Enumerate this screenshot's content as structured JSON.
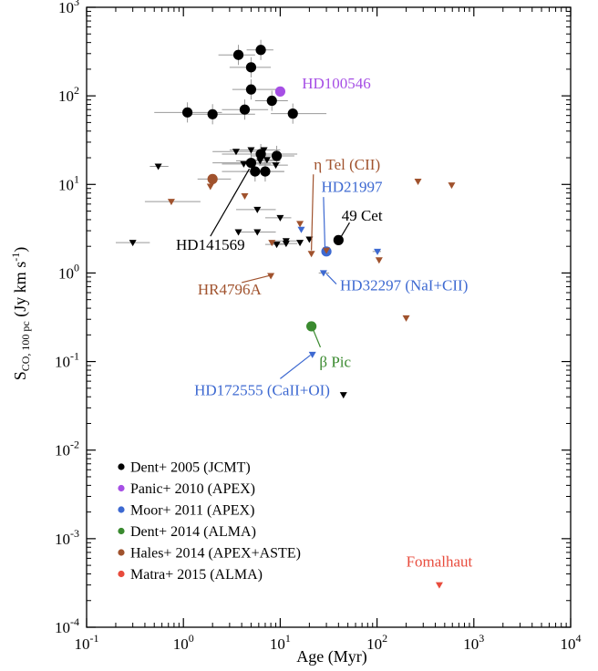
{
  "colors": {
    "dent2005": "#000000",
    "panic2010": "#a64fe5",
    "moor2011": "#3d69d1",
    "dent2014": "#3a8a2f",
    "hales2014": "#a0522d",
    "matra2015": "#e84b3c",
    "errorbar": "#999999"
  },
  "chart_data": {
    "type": "scatter",
    "xscale": "log",
    "yscale": "log",
    "xlim": [
      0.1,
      10000
    ],
    "ylim": [
      0.0001,
      1000
    ],
    "xlabel": "Age (Myr)",
    "ylabel": "S_CO,100 pc (Jy km s^-1)",
    "ylabel_parts": {
      "main": "S",
      "sub": "CO, 100 pc",
      "unit": " (Jy km s",
      "sup": "-1",
      "close": ")"
    },
    "xticks": [
      {
        "base": "10",
        "exp": "-1",
        "value": 0.1
      },
      {
        "base": "10",
        "exp": "0",
        "value": 1
      },
      {
        "base": "10",
        "exp": "1",
        "value": 10
      },
      {
        "base": "10",
        "exp": "2",
        "value": 100
      },
      {
        "base": "10",
        "exp": "3",
        "value": 1000
      },
      {
        "base": "10",
        "exp": "4",
        "value": 10000
      }
    ],
    "yticks": [
      {
        "base": "10",
        "exp": "-4",
        "value": 0.0001
      },
      {
        "base": "10",
        "exp": "-3",
        "value": 0.001
      },
      {
        "base": "10",
        "exp": "-2",
        "value": 0.01
      },
      {
        "base": "10",
        "exp": "-1",
        "value": 0.1
      },
      {
        "base": "10",
        "exp": "0",
        "value": 1
      },
      {
        "base": "10",
        "exp": "1",
        "value": 10
      },
      {
        "base": "10",
        "exp": "2",
        "value": 100
      },
      {
        "base": "10",
        "exp": "3",
        "value": 1000
      }
    ],
    "legend_position": "bottom-left",
    "series": [
      {
        "name": "Dent+ 2005 (JCMT)",
        "color_key": "dent2005",
        "detections": [
          {
            "x": 6.3,
            "y": 330,
            "xerr": [
              4.5,
              8.5
            ]
          },
          {
            "x": 3.7,
            "y": 290,
            "xerr": [
              2.3,
              5.5
            ]
          },
          {
            "x": 5.0,
            "y": 210,
            "xerr": [
              3.0,
              8.0
            ]
          },
          {
            "x": 5.0,
            "y": 118,
            "xerr": [
              3.2,
              9.0
            ]
          },
          {
            "x": 8.2,
            "y": 88,
            "xerr": [
              5.5,
              12.0
            ]
          },
          {
            "x": 4.3,
            "y": 70,
            "xerr": [
              2.5,
              7.5
            ]
          },
          {
            "x": 1.1,
            "y": 65,
            "xerr": [
              0.5,
              2.5
            ]
          },
          {
            "x": 2.0,
            "y": 62,
            "xerr": [
              1.0,
              5.5
            ]
          },
          {
            "x": 13.5,
            "y": 63,
            "xerr": [
              8.0,
              30.0
            ]
          },
          {
            "x": 6.3,
            "y": 22,
            "xerr": [
              2.5,
              15.0
            ]
          },
          {
            "x": 9.2,
            "y": 21,
            "xerr": [
              5.0,
              14.0
            ]
          },
          {
            "x": 5.0,
            "y": 17.5,
            "xerr": [
              2.0,
              10.0
            ]
          },
          {
            "x": 5.5,
            "y": 14,
            "xerr": [
              2.5,
              11.0
            ]
          },
          {
            "x": 7.0,
            "y": 14,
            "xerr": [
              4.0,
              11.0
            ]
          },
          {
            "x": 40,
            "y": 2.35,
            "xerr": null
          }
        ],
        "upper_limits": [
          {
            "x": 0.3,
            "y": 2.2,
            "xerr": [
              0.2,
              0.45
            ]
          },
          {
            "x": 0.55,
            "y": 16,
            "xerr": [
              0.45,
              0.7
            ]
          },
          {
            "x": 3.5,
            "y": 23.5,
            "xerr": [
              2.0,
              6.0
            ]
          },
          {
            "x": 5.0,
            "y": 24.5,
            "xerr": [
              3.0,
              9.0
            ]
          },
          {
            "x": 6.8,
            "y": 24.5,
            "xerr": [
              4.0,
              10.0
            ]
          },
          {
            "x": 4.2,
            "y": 17,
            "xerr": [
              2.5,
              8.0
            ]
          },
          {
            "x": 6.2,
            "y": 18.5,
            "xerr": [
              3.5,
              10.0
            ]
          },
          {
            "x": 7.3,
            "y": 19,
            "xerr": [
              4.5,
              10.0
            ]
          },
          {
            "x": 9.0,
            "y": 16.5,
            "xerr": [
              6.0,
              12.0
            ]
          },
          {
            "x": 5.8,
            "y": 5.2,
            "xerr": [
              3.5,
              9.0
            ]
          },
          {
            "x": 5.8,
            "y": 2.9,
            "xerr": [
              3.5,
              9.0
            ]
          },
          {
            "x": 10.0,
            "y": 4.2,
            "xerr": [
              7.0,
              13.0
            ]
          },
          {
            "x": 9.2,
            "y": 2.1,
            "xerr": [
              7.0,
              12.0
            ]
          },
          {
            "x": 11.5,
            "y": 2.15,
            "xerr": [
              8.0,
              15.0
            ]
          },
          {
            "x": 11.5,
            "y": 2.3,
            "xerr": [
              8.0,
              15.0
            ]
          },
          {
            "x": 16.0,
            "y": 2.2,
            "xerr": null
          },
          {
            "x": 20.0,
            "y": 2.4,
            "xerr": null
          },
          {
            "x": 3.7,
            "y": 2.9,
            "xerr": null
          },
          {
            "x": 45,
            "y": 0.042,
            "xerr": null
          }
        ]
      },
      {
        "name": "Panic+ 2010 (APEX)",
        "color_key": "panic2010",
        "detections": [
          {
            "x": 10.0,
            "y": 112,
            "xerr": null
          }
        ],
        "upper_limits": []
      },
      {
        "name": "Moor+ 2011 (APEX)",
        "color_key": "moor2011",
        "detections": [
          {
            "x": 30,
            "y": 1.75,
            "xerr": null
          }
        ],
        "upper_limits": [
          {
            "x": 16.5,
            "y": 3.1,
            "xerr": null
          },
          {
            "x": 21.5,
            "y": 0.12,
            "xerr": null
          },
          {
            "x": 28.0,
            "y": 1.0,
            "xerr": [
              25.0,
              32.0
            ]
          },
          {
            "x": 101,
            "y": 1.75,
            "xerr": [
              90.0,
              110.0
            ]
          }
        ]
      },
      {
        "name": "Dent+ 2014 (ALMA)",
        "color_key": "dent2014",
        "detections": [
          {
            "x": 21,
            "y": 0.25,
            "xerr": null
          }
        ],
        "upper_limits": []
      },
      {
        "name": "Hales+ 2014 (APEX+ASTE)",
        "color_key": "hales2014",
        "detections": [
          {
            "x": 2.0,
            "y": 11.5,
            "xerr": [
              1.4,
              3.1
            ]
          }
        ],
        "upper_limits": [
          {
            "x": 0.75,
            "y": 6.4,
            "xerr": [
              0.4,
              1.5
            ]
          },
          {
            "x": 1.9,
            "y": 9.5,
            "xerr": null
          },
          {
            "x": 4.3,
            "y": 7.4,
            "xerr": null
          },
          {
            "x": 8.0,
            "y": 0.93,
            "xerr": null
          },
          {
            "x": 8.2,
            "y": 2.2,
            "xerr": null
          },
          {
            "x": 16.0,
            "y": 3.6,
            "xerr": null
          },
          {
            "x": 21.0,
            "y": 1.65,
            "xerr": null
          },
          {
            "x": 30.0,
            "y": 1.8,
            "xerr": null
          },
          {
            "x": 105,
            "y": 1.4,
            "xerr": null
          },
          {
            "x": 200,
            "y": 0.31,
            "xerr": null
          },
          {
            "x": 265,
            "y": 10.8,
            "xerr": null
          },
          {
            "x": 590,
            "y": 9.8,
            "xerr": null
          }
        ]
      },
      {
        "name": "Matra+ 2015 (ALMA)",
        "color_key": "matra2015",
        "detections": [],
        "upper_limits": [
          {
            "x": 440,
            "y": 0.0003,
            "xerr": null
          }
        ]
      }
    ],
    "annotations": [
      {
        "text": "HD100546",
        "color_key": "panic2010",
        "x": 38,
        "y": 140,
        "arrow": null
      },
      {
        "text": "η Tel (CII)",
        "color_key": "hales2014",
        "x": 49,
        "y": 17,
        "arrow": {
          "from": [
            22,
            13
          ],
          "to": [
            21,
            1.8
          ]
        }
      },
      {
        "text": "HD21997",
        "color_key": "moor2011",
        "x": 55,
        "y": 9.5,
        "arrow": {
          "from": [
            28,
            7.2
          ],
          "to": [
            29,
            1.9
          ]
        }
      },
      {
        "text": "49 Cet",
        "color_key": "dent2005",
        "x": 70,
        "y": 4.5,
        "arrow": {
          "from": [
            52,
            3.7
          ],
          "to": [
            41,
            2.4
          ]
        }
      },
      {
        "text": "HD141569",
        "color_key": "dent2005",
        "x": 1.9,
        "y": 2.1,
        "arrow": {
          "from": [
            1.9,
            2.6
          ],
          "to": [
            4.8,
            15.0
          ]
        }
      },
      {
        "text": "HR4796A",
        "color_key": "hales2014",
        "x": 3.0,
        "y": 0.66,
        "arrow": {
          "from": [
            4.0,
            0.78
          ],
          "to": [
            7.9,
            0.94
          ]
        }
      },
      {
        "text": "HD32297 (NaI+CII)",
        "color_key": "moor2011",
        "x": 190,
        "y": 0.73,
        "arrow": {
          "from": [
            38,
            0.75
          ],
          "to": [
            30,
            0.98
          ]
        }
      },
      {
        "text": "β Pic",
        "color_key": "dent2014",
        "x": 37,
        "y": 0.1,
        "arrow": {
          "from": [
            26,
            0.145
          ],
          "to": [
            21.5,
            0.24
          ]
        }
      },
      {
        "text": "HD172555 (CaII+OI)",
        "color_key": "moor2011",
        "x": 6.5,
        "y": 0.048,
        "arrow": {
          "from": [
            10,
            0.064
          ],
          "to": [
            20.5,
            0.118
          ]
        }
      },
      {
        "text": "Fomalhaut",
        "color_key": "matra2015",
        "x": 440,
        "y": 0.00056,
        "arrow": null
      }
    ]
  }
}
